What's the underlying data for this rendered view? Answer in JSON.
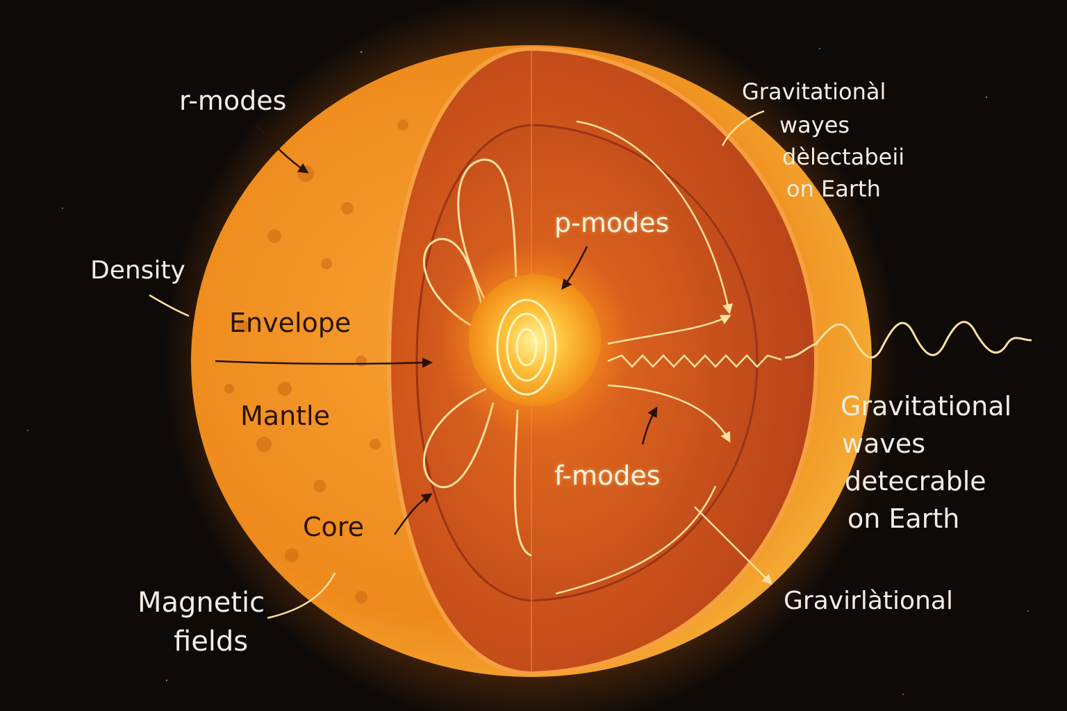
{
  "labels": {
    "r_modes": "r-modes",
    "density": "Density",
    "envelope": "Envelope",
    "mantle": "Mantle",
    "core": "Core",
    "magnetic_fields_line1": "Magnetic",
    "magnetic_fields_line2": "fields",
    "p_modes": "p-modes",
    "f_modes": "f-modes",
    "grav_top_line1": "Gravitationàl",
    "grav_top_line2": "wayes",
    "grav_top_line3": "dèlectabeii",
    "grav_top_line4": "on Earth",
    "grav_right_line1": "Gravitational",
    "grav_right_line2": "waves",
    "grav_right_line3": "detecrable",
    "grav_right_line4": "on Earth",
    "grav_bottom": "Gravirlàtional"
  },
  "colors": {
    "background": "#0e0a08",
    "star_outer": "#f39a1e",
    "cutaway_red": "#b8401a",
    "core_glow": "#ffd35a",
    "wave_line": "#ffe2a0"
  }
}
